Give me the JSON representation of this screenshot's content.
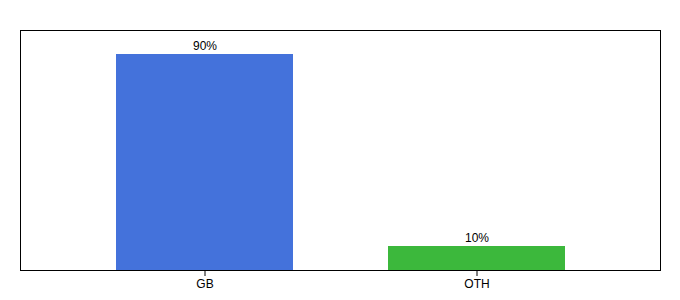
{
  "chart_data": {
    "type": "bar",
    "categories": [
      "GB",
      "OTH"
    ],
    "values": [
      90,
      10
    ],
    "colors": [
      "#4472db",
      "#3cb83c"
    ],
    "value_labels": [
      "90%",
      "10%"
    ],
    "data_labels": true,
    "ylim": [
      0,
      100
    ],
    "tick_labels": "x"
  }
}
